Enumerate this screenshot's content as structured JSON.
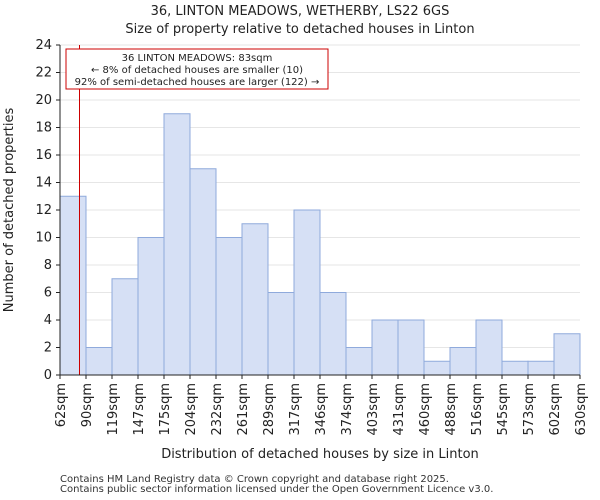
{
  "chart_data": {
    "type": "bar",
    "title": "36, LINTON MEADOWS, WETHERBY, LS22 6GS",
    "subtitle": "Size of property relative to detached houses in Linton",
    "xlabel": "Distribution of detached houses by size in Linton",
    "ylabel": "Number of detached properties",
    "bin_edges": [
      "62sqm",
      "90sqm",
      "119sqm",
      "147sqm",
      "175sqm",
      "204sqm",
      "232sqm",
      "261sqm",
      "289sqm",
      "317sqm",
      "346sqm",
      "374sqm",
      "403sqm",
      "431sqm",
      "460sqm",
      "488sqm",
      "516sqm",
      "545sqm",
      "573sqm",
      "602sqm",
      "630sqm"
    ],
    "values": [
      13,
      2,
      7,
      10,
      19,
      15,
      10,
      11,
      6,
      12,
      6,
      2,
      4,
      4,
      1,
      2,
      4,
      1,
      1,
      3
    ],
    "ylim": [
      0,
      24
    ],
    "yticks": [
      0,
      2,
      4,
      6,
      8,
      10,
      12,
      14,
      16,
      18,
      20,
      22,
      24
    ],
    "marker": {
      "bin_position": 0.75
    },
    "annotation": {
      "line1": "36 LINTON MEADOWS: 83sqm",
      "line2": "← 8% of detached houses are smaller (10)",
      "line3": "92% of semi-detached houses are larger (122) →"
    },
    "colors": {
      "bar_fill": "#d6e0f5",
      "bar_edge": "#8faadc",
      "marker": "#cc0000",
      "grid": "#e6e6e6"
    }
  },
  "footer": {
    "line1": "Contains HM Land Registry data © Crown copyright and database right 2025.",
    "line2": "Contains public sector information licensed under the Open Government Licence v3.0."
  }
}
